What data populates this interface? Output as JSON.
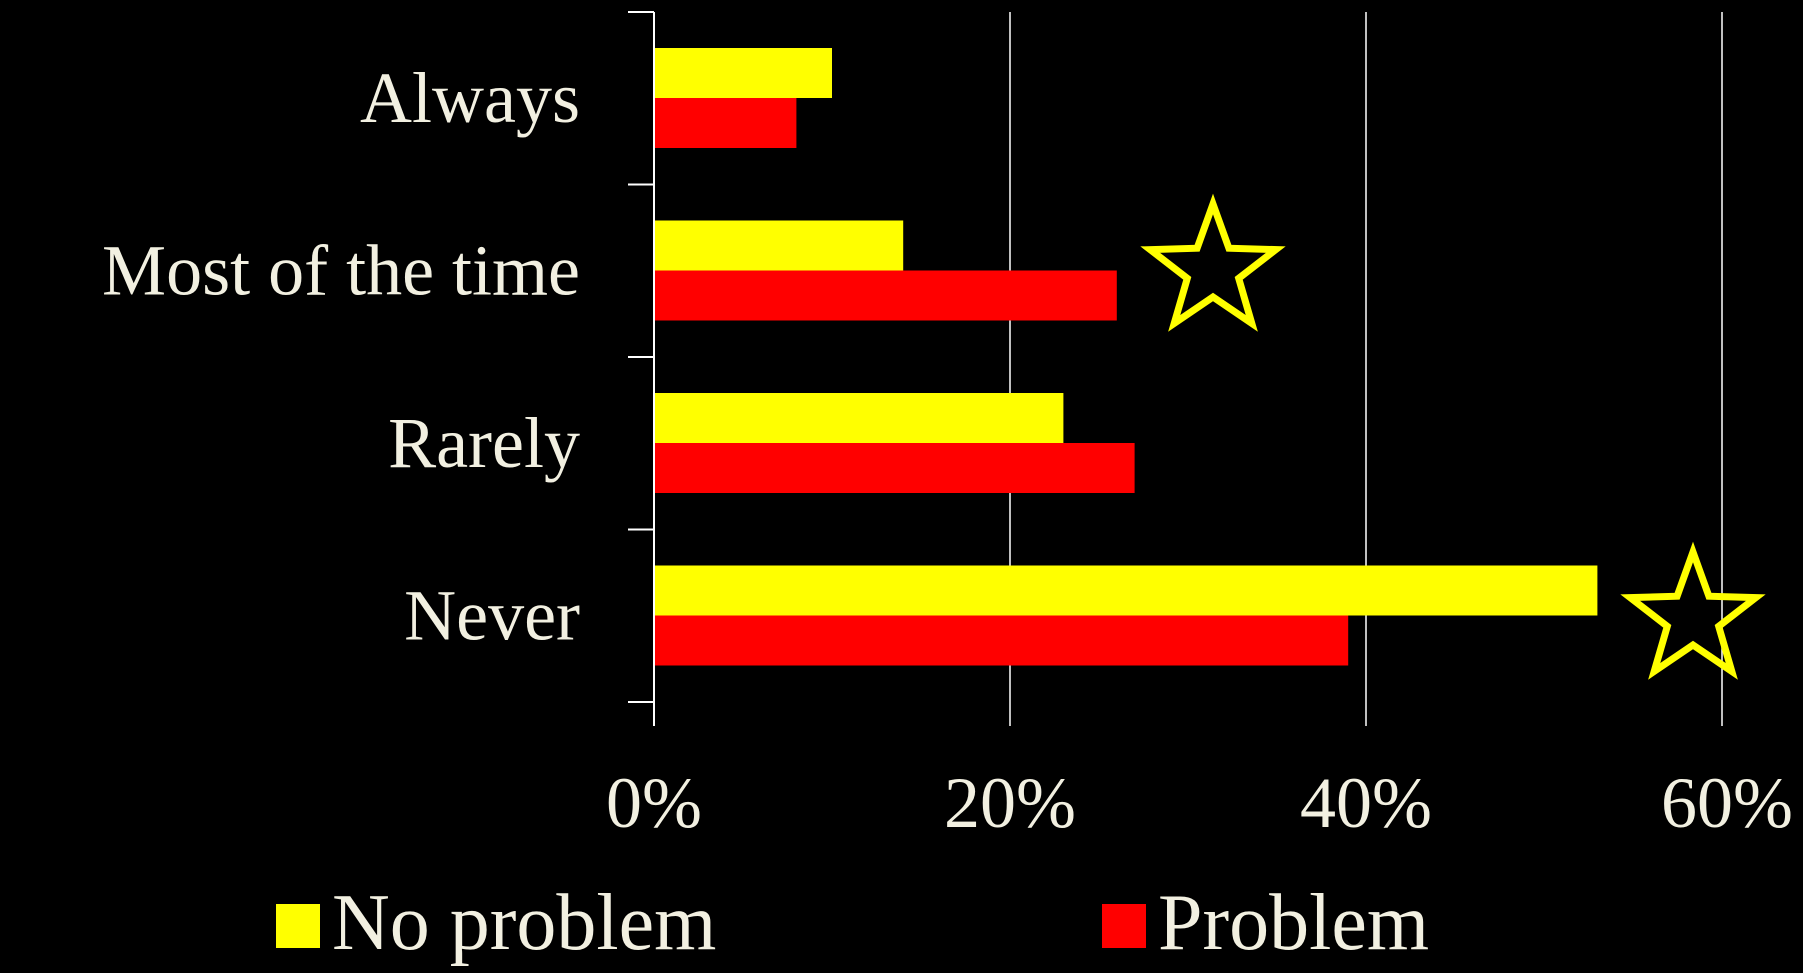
{
  "chart_data": {
    "type": "bar",
    "orientation": "horizontal",
    "categories": [
      "Always",
      "Most of the time",
      "Rarely",
      "Never"
    ],
    "series": [
      {
        "name": "No problem",
        "color": "#ffff00",
        "values": [
          10,
          14,
          23,
          53
        ]
      },
      {
        "name": "Problem",
        "color": "#ff0000",
        "values": [
          8,
          26,
          27,
          39
        ]
      }
    ],
    "x_ticks": [
      "0%",
      "20%",
      "40%",
      "60%"
    ],
    "x_tick_values": [
      0,
      20,
      40,
      60
    ],
    "xlim": [
      0,
      60
    ],
    "xlabel": "",
    "ylabel": "",
    "title": "",
    "grid": "vertical",
    "legend": "bottom",
    "annotations": [
      {
        "type": "star",
        "category": "Most of the time",
        "icon": "star-outline-icon",
        "color": "#ffff00"
      },
      {
        "type": "star",
        "category": "Never",
        "icon": "star-outline-icon",
        "color": "#ffff00"
      }
    ],
    "background": "#000000",
    "text_color": "#f2f0e1",
    "axis_color": "#ffffff"
  },
  "legend": {
    "items": [
      {
        "label": "No problem",
        "color": "#ffff00"
      },
      {
        "label": "Problem",
        "color": "#ff0000"
      }
    ]
  }
}
